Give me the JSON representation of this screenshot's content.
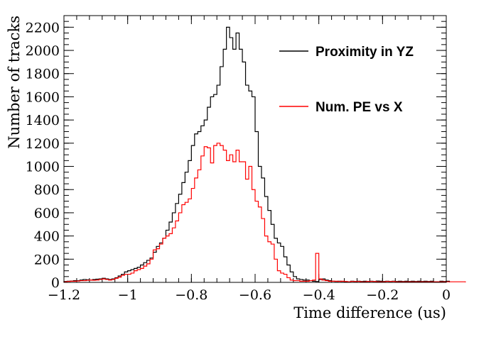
{
  "chart_data": {
    "type": "line",
    "xlabel": "Time difference (us)",
    "ylabel": "Number of tracks",
    "xlim": [
      -1.2,
      0
    ],
    "ylim": [
      0,
      2300
    ],
    "x_ticks": [
      -1.2,
      -1,
      -0.8,
      -0.6,
      -0.4,
      -0.2,
      0
    ],
    "x_tick_labels": [
      "−1.2",
      "−1",
      "−0.8",
      "−0.6",
      "−0.4",
      "−0.2",
      "0"
    ],
    "y_ticks": [
      0,
      200,
      400,
      600,
      800,
      1000,
      1200,
      1400,
      1600,
      1800,
      2000,
      2200
    ],
    "y_tick_labels": [
      "0",
      "200",
      "400",
      "600",
      "800",
      "1000",
      "1200",
      "1400",
      "1600",
      "1800",
      "2000",
      "2200"
    ],
    "grid": false,
    "legend_position": "top-right",
    "bin_width": 0.01,
    "bin_start": -1.2,
    "series": [
      {
        "name": "Proximity in YZ",
        "color": "#000000",
        "values": [
          8,
          10,
          12,
          15,
          15,
          20,
          25,
          22,
          20,
          25,
          28,
          30,
          35,
          30,
          25,
          30,
          40,
          55,
          70,
          90,
          100,
          110,
          120,
          130,
          150,
          170,
          190,
          210,
          260,
          310,
          340,
          380,
          450,
          520,
          600,
          680,
          760,
          860,
          950,
          1050,
          1180,
          1280,
          1300,
          1350,
          1400,
          1510,
          1600,
          1620,
          1700,
          1860,
          2010,
          2200,
          2110,
          2010,
          2150,
          2010,
          1900,
          1700,
          1650,
          1600,
          1300,
          1000,
          900,
          740,
          620,
          500,
          380,
          340,
          310,
          220,
          150,
          90,
          50,
          30,
          25,
          20,
          20,
          15,
          10,
          8,
          25,
          30,
          20,
          15,
          10,
          8,
          10,
          8,
          5,
          5,
          10,
          8,
          10,
          8,
          10,
          8,
          10,
          8,
          12,
          10,
          8,
          10,
          8,
          10,
          8,
          10,
          8,
          10,
          8,
          10,
          8,
          10,
          8,
          10,
          8,
          10,
          5,
          5,
          10,
          8,
          10
        ]
      },
      {
        "name": "Num. PE vs X",
        "color": "#ff0000",
        "values": [
          5,
          8,
          10,
          10,
          12,
          15,
          15,
          18,
          20,
          18,
          20,
          25,
          30,
          25,
          20,
          25,
          35,
          45,
          60,
          70,
          70,
          80,
          100,
          110,
          120,
          140,
          160,
          200,
          280,
          290,
          330,
          380,
          400,
          420,
          470,
          530,
          600,
          670,
          690,
          720,
          810,
          900,
          970,
          1090,
          1170,
          1160,
          1030,
          1180,
          1200,
          1180,
          1140,
          1050,
          1100,
          1040,
          1140,
          1040,
          1040,
          890,
          1000,
          800,
          700,
          650,
          550,
          400,
          350,
          330,
          200,
          100,
          80,
          70,
          40,
          20,
          15,
          15,
          10,
          10,
          10,
          15,
          20,
          250,
          30,
          20,
          15,
          10,
          10,
          10,
          8,
          10,
          8,
          5,
          8,
          8,
          8,
          5,
          5,
          8,
          8,
          8,
          5,
          5,
          5,
          8,
          8,
          8,
          5,
          5,
          5,
          5,
          5,
          5,
          5,
          5,
          5,
          5,
          5,
          5,
          5,
          5,
          5,
          5,
          5,
          5,
          5,
          5,
          5,
          5
        ]
      }
    ]
  }
}
